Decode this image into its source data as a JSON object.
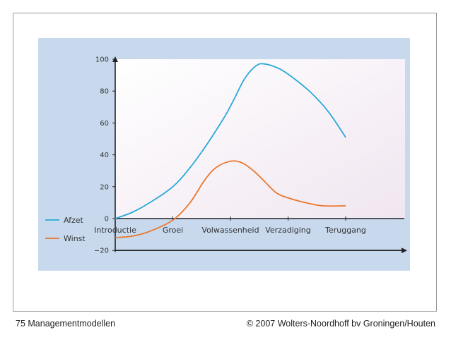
{
  "chart_data": {
    "type": "line",
    "categories": [
      "Introductie",
      "Groei",
      "Volwassenheid",
      "Verzadiging",
      "Teruggang"
    ],
    "yticks": [
      -20,
      0,
      20,
      40,
      60,
      80,
      100
    ],
    "ylim": [
      -20,
      100
    ],
    "grid": false,
    "legend_position": "left",
    "series": [
      {
        "name": "Afzet",
        "color": "#2aa9d8",
        "points": [
          [
            0,
            0
          ],
          [
            0.3,
            4
          ],
          [
            0.6,
            10
          ],
          [
            1,
            20
          ],
          [
            1.3,
            32
          ],
          [
            1.6,
            47
          ],
          [
            1.9,
            64
          ],
          [
            2.05,
            74
          ],
          [
            2.25,
            88
          ],
          [
            2.45,
            96
          ],
          [
            2.6,
            97
          ],
          [
            2.85,
            94
          ],
          [
            3.1,
            88
          ],
          [
            3.4,
            79
          ],
          [
            3.7,
            67
          ],
          [
            4,
            51
          ]
        ]
      },
      {
        "name": "Winst",
        "color": "#e8782f",
        "points": [
          [
            0,
            -12
          ],
          [
            0.3,
            -11
          ],
          [
            0.6,
            -8
          ],
          [
            1,
            -1
          ],
          [
            1.3,
            10
          ],
          [
            1.55,
            24
          ],
          [
            1.75,
            32
          ],
          [
            2,
            36
          ],
          [
            2.2,
            35
          ],
          [
            2.4,
            30
          ],
          [
            2.6,
            23
          ],
          [
            2.8,
            16
          ],
          [
            3,
            13
          ],
          [
            3.3,
            10
          ],
          [
            3.6,
            8
          ],
          [
            4,
            8
          ]
        ]
      }
    ]
  },
  "footer": {
    "left": "75 Managementmodellen",
    "right": "© 2007 Wolters-Noordhoff bv Groningen/Houten"
  }
}
